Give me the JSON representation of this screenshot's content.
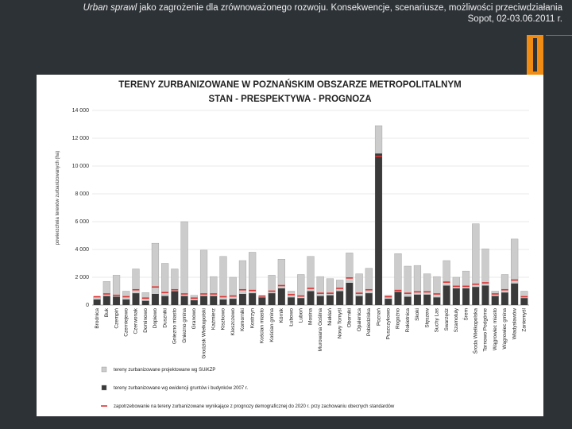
{
  "header": {
    "title_italic": "Urban sprawl",
    "title_rest": " jako zagrożenie dla zrównoważonego rozwoju. Konsekwencje, scenariusze, możliwości przeciwdziałania",
    "place_date": "Sopot, 02-03.06.2011 r."
  },
  "colors": {
    "background": "#2d3237",
    "accent": "#f08c14",
    "planned": "#cccccc",
    "existing": "#3a3a3a",
    "demand": "#e03030"
  },
  "chart_data": {
    "type": "bar",
    "title": "TERENY ZURBANIZOWANE W POZNAŃSKIM OBSZARZE METROPOLITALNYM",
    "subtitle": "STAN - PRESPEKTYWA - PROGNOZA",
    "xlabel": "",
    "ylabel": "powierzchnia terenów zurbanizowanych (ha)",
    "ylim": [
      0,
      14000
    ],
    "yticks": [
      {
        "value": 0,
        "label": "0"
      },
      {
        "value": 2000,
        "label": "2 000"
      },
      {
        "value": 4000,
        "label": "4 000"
      },
      {
        "value": 6000,
        "label": "6 000"
      },
      {
        "value": 8000,
        "label": "8 000"
      },
      {
        "value": 10000,
        "label": "10 000"
      },
      {
        "value": 12000,
        "label": "12 000"
      },
      {
        "value": 14000,
        "label": "14 000"
      }
    ],
    "grid": true,
    "categories": [
      "Brodnica",
      "Buk",
      "Czempiń",
      "Czerniejewo",
      "Czerwonak",
      "Dominowo",
      "Dopiewo",
      "Duszniki",
      "Gniezno miasto",
      "Gniezno gmina",
      "Granowo",
      "Grodzisk Wielkopolski",
      "Kaźmierz",
      "Kiszkowo",
      "Kleszczewo",
      "Komorniki",
      "Kostrzyn",
      "Kościan miasto",
      "Kościan gmina",
      "Kórnik",
      "Łubowo",
      "Luboń",
      "Mosina",
      "Murowana Goślina",
      "Niekłań",
      "Nowy Tomyśl",
      "Oborniki",
      "Opalenica",
      "Pobiedziska",
      "Poznań",
      "Puszczykowo",
      "Rogoźno",
      "Rokietnica",
      "Skoki",
      "Stęszew",
      "Suchy Las",
      "Swarzędz",
      "Szamotuły",
      "Śrem",
      "Środa Wielkopolska",
      "Tarnowo Podgórne",
      "Wągrowiec miasto",
      "Wągrowiec gmina",
      "Władysławów",
      "Zaniemyśl"
    ],
    "series": [
      {
        "name": "tereny zurbanizowane projektowane wg SUiKZP",
        "values": [
          600,
          1700,
          2150,
          1000,
          2600,
          900,
          4450,
          3000,
          2600,
          6000,
          700,
          3950,
          2050,
          3500,
          2000,
          3200,
          3800,
          600,
          2150,
          3300,
          1000,
          2200,
          3500,
          2050,
          1900,
          1800,
          3750,
          2250,
          2650,
          12900,
          700,
          3700,
          2800,
          2850,
          2250,
          2050,
          3200,
          2000,
          2450,
          5850,
          4050,
          1000,
          2200,
          4750,
          1000
        ]
      },
      {
        "name": "tereny zurbanizowane wg ewidencji gruntów i budynków 2007 r.",
        "values": [
          400,
          650,
          600,
          400,
          850,
          300,
          800,
          650,
          1000,
          650,
          350,
          650,
          650,
          400,
          450,
          800,
          850,
          550,
          850,
          1200,
          550,
          500,
          1000,
          650,
          700,
          1000,
          1600,
          650,
          850,
          10900,
          450,
          950,
          600,
          750,
          750,
          550,
          1400,
          1200,
          1200,
          1300,
          1400,
          650,
          900,
          1550,
          500
        ]
      },
      {
        "name": "zapotrzebowanie na tereny zurbanizowane wynikające z prognozy demograficznej do 2020 r. przy zachowaniu obecnych standardów",
        "values": [
          600,
          800,
          700,
          600,
          1100,
          500,
          1300,
          900,
          1100,
          800,
          500,
          800,
          800,
          600,
          650,
          1100,
          1050,
          650,
          1000,
          1400,
          750,
          650,
          1200,
          850,
          850,
          1200,
          1950,
          850,
          1100,
          10700,
          600,
          1050,
          850,
          950,
          950,
          800,
          1650,
          1350,
          1350,
          1500,
          1600,
          800,
          1100,
          1800,
          600
        ]
      }
    ],
    "legend_position": "bottom-left"
  }
}
